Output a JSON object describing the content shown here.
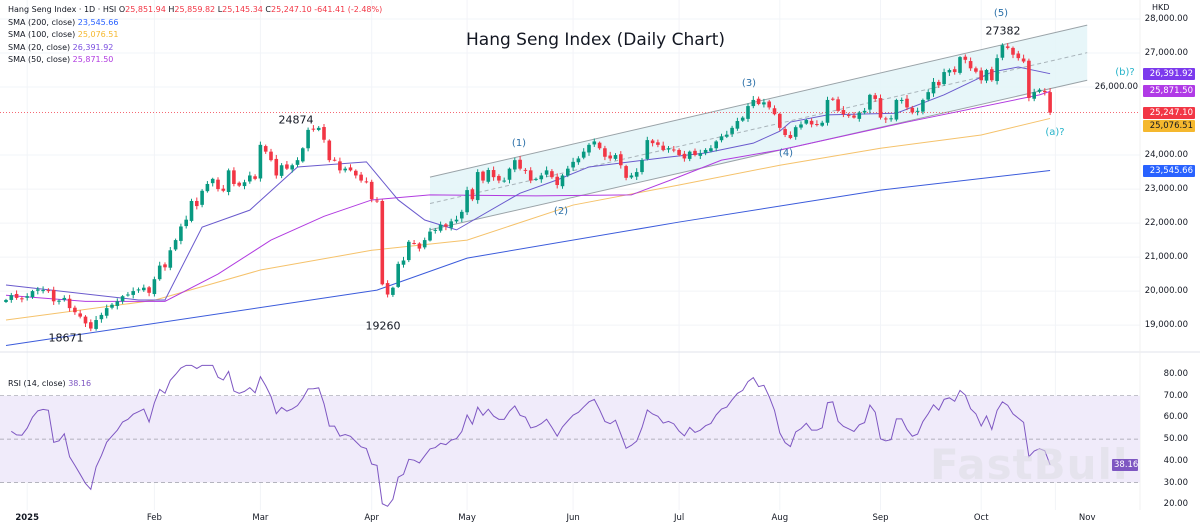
{
  "header": {
    "symbol": "Hang Seng Index · 1D · HSI",
    "o_label": "O",
    "o": "25,851.94",
    "h_label": "H",
    "h": "25,859.82",
    "l_label": "L",
    "l": "25,145.34",
    "c_label": "C",
    "c": "25,247.10",
    "change": "-641.41 (-2.48%)"
  },
  "indicators": [
    {
      "label": "SMA (200, close)",
      "value": "23,545.66",
      "color": "#2962ff"
    },
    {
      "label": "SMA (100, close)",
      "value": "25,076.51",
      "color": "#f5b82e"
    },
    {
      "label": "SMA (20, close)",
      "value": "26,391.92",
      "color": "#7b4fe0"
    },
    {
      "label": "SMA (50, close)",
      "value": "25,871.50",
      "color": "#b13be0"
    }
  ],
  "title": "Hang Seng Index (Daily Chart)",
  "currency": "HKD",
  "rsi_legend": {
    "label": "RSI (14, close)",
    "value": "38.16"
  },
  "annotations": {
    "high_mar": "24874",
    "low_jan": "18671",
    "low_apr": "19260",
    "high_oct": "27382",
    "w1": "(1)",
    "w2": "(2)",
    "w3": "(3)",
    "w4": "(4)",
    "w5": "(5)",
    "wb": "(b)?",
    "wa": "(a)?"
  },
  "price_axis": {
    "ticks": [
      {
        "v": 28000,
        "t": "28,000.00"
      },
      {
        "v": 27000,
        "t": "27,000.00"
      },
      {
        "v": 26000,
        "t": "26,000.00"
      },
      {
        "v": 24000,
        "t": "24,000.00"
      },
      {
        "v": 23000,
        "t": "23,000.00"
      },
      {
        "v": 22000,
        "t": "22,000.00"
      },
      {
        "v": 21000,
        "t": "21,000.00"
      },
      {
        "v": 20000,
        "t": "20,000.00"
      },
      {
        "v": 19000,
        "t": "19,000.00"
      }
    ],
    "badges": [
      {
        "v": 26391.92,
        "t": "26,391.92",
        "color": "#7c3aed"
      },
      {
        "v": 25871.5,
        "t": "25,871.50",
        "color": "#b03ae6"
      },
      {
        "v": 25247.1,
        "t": "25,247.10",
        "color": "#f23645"
      },
      {
        "v": 25076.51,
        "t": "25,076.51",
        "color": "#f5b82e"
      },
      {
        "v": 23545.66,
        "t": "23,545.66",
        "color": "#2962ff"
      }
    ]
  },
  "rsi_axis": {
    "ticks": [
      {
        "v": 80,
        "t": "80.00"
      },
      {
        "v": 70,
        "t": "70.00"
      },
      {
        "v": 60,
        "t": "60.00"
      },
      {
        "v": 50,
        "t": "50.00"
      },
      {
        "v": 40,
        "t": "40.00"
      },
      {
        "v": 30,
        "t": "30.00"
      },
      {
        "v": 20,
        "t": "20.00"
      }
    ],
    "badge": {
      "v": 38.16,
      "t": "38.16",
      "color": "#7e57c2"
    }
  },
  "watermark": "FastBull",
  "colors": {
    "up": "#089981",
    "down": "#f23645",
    "channel_fill": "#e3f4f8",
    "channel_line": "#9aa3a8",
    "rsi": "#7e57c2",
    "rsi_band": "#f0ebfa"
  },
  "chart_data": {
    "type": "candlestick",
    "title": "Hang Seng Index (Daily Chart)",
    "ylim": [
      18400,
      28300
    ],
    "current_price": 25247.1,
    "groups": [
      {
        "label": "",
        "closes": [
          19740,
          19880,
          19800,
          19780
        ]
      },
      {
        "label": "2025",
        "closes": [
          19850,
          20000,
          20050,
          20030,
          20000,
          19700,
          19720,
          19800,
          19500,
          19380,
          19250,
          19050,
          18900,
          19150,
          19300,
          19500,
          19600,
          19700,
          19850,
          19900,
          20000,
          20050,
          20100,
          19950
        ]
      },
      {
        "label": "Feb",
        "closes": [
          20350,
          20750,
          20700,
          21200,
          21500,
          21900,
          22100,
          22650,
          22500,
          22950,
          23150,
          23300,
          23000,
          22950,
          23550,
          23150,
          23100,
          23200,
          23400,
          23300
        ]
      },
      {
        "label": "Mar",
        "closes": [
          24300,
          24100,
          23850,
          23400,
          23700,
          23600,
          23700,
          23850,
          24200,
          24740,
          24750,
          24800,
          24450,
          23850,
          23850,
          23550,
          23600,
          23550,
          23400,
          23250,
          23200
        ]
      },
      {
        "label": "Apr",
        "closes": [
          22700,
          22650,
          20200,
          19900,
          20100,
          20800,
          20900,
          21450,
          21400,
          21250,
          21500,
          21750,
          21800,
          21950,
          21900,
          22050,
          22100,
          22330
        ]
      },
      {
        "label": "May",
        "closes": [
          22970,
          22700,
          23500,
          23250,
          23560,
          23350,
          23250,
          23250,
          23600,
          23850,
          23600,
          23550,
          23250,
          23300,
          23400,
          23550,
          23350,
          23120,
          23400,
          23600
        ]
      },
      {
        "label": "Jun",
        "closes": [
          23800,
          23900,
          24100,
          24300,
          24400,
          24200,
          23950,
          23900,
          24000,
          23700,
          23330,
          23400,
          23500,
          23850,
          24440,
          24350,
          24300,
          24150,
          24200,
          24150
        ]
      },
      {
        "label": "Jul",
        "closes": [
          24000,
          23900,
          24100,
          24000,
          24050,
          24150,
          24200,
          24400,
          24550,
          24600,
          24800,
          25000,
          25100,
          25440,
          25620,
          25500,
          25550,
          25400,
          25200
        ]
      },
      {
        "label": "Aug",
        "closes": [
          24800,
          24590,
          24500,
          24820,
          24900,
          25030,
          24900,
          24900,
          24950,
          25620,
          25650,
          25300,
          25200,
          25150,
          25100,
          25250,
          25300,
          25770,
          25650
        ]
      },
      {
        "label": "Sep",
        "closes": [
          25100,
          25050,
          25080,
          25620,
          25620,
          25400,
          25250,
          25300,
          25620,
          25850,
          26150,
          26050,
          26440,
          26500,
          26440,
          26880,
          26800,
          26550,
          26450
        ]
      },
      {
        "label": "Oct",
        "closes": [
          26200,
          26500,
          26200,
          26850,
          27230,
          27150,
          26950,
          26850,
          26750,
          25680,
          25850,
          25920,
          25850,
          25247.1
        ]
      },
      {
        "label": "Nov",
        "closes": []
      }
    ],
    "sma": [
      {
        "name": "SMA (200, close)",
        "color": "#3b5bdb",
        "points": [
          [
            0,
            18400
          ],
          [
            70,
            20030
          ],
          [
            87,
            20970
          ],
          [
            127,
            22030
          ],
          [
            165,
            22970
          ],
          [
            197,
            23545.66
          ]
        ]
      },
      {
        "name": "SMA (100, close)",
        "color": "#f5c26b",
        "points": [
          [
            0,
            19150
          ],
          [
            28,
            19730
          ],
          [
            48,
            20620
          ],
          [
            69,
            21200
          ],
          [
            87,
            21500
          ],
          [
            107,
            22530
          ],
          [
            127,
            23120
          ],
          [
            146,
            23700
          ],
          [
            165,
            24200
          ],
          [
            184,
            24590
          ],
          [
            197,
            25076.51
          ]
        ]
      },
      {
        "name": "SMA (50, close)",
        "color": "#b13be0",
        "points": [
          [
            0,
            19880
          ],
          [
            15,
            19700
          ],
          [
            30,
            19700
          ],
          [
            40,
            20500
          ],
          [
            50,
            21500
          ],
          [
            60,
            22200
          ],
          [
            69,
            22680
          ],
          [
            80,
            22830
          ],
          [
            100,
            22800
          ],
          [
            118,
            22830
          ],
          [
            126,
            23300
          ],
          [
            135,
            23850
          ],
          [
            146,
            24150
          ],
          [
            170,
            24970
          ],
          [
            195,
            25770
          ],
          [
            197,
            25871.5
          ]
        ]
      },
      {
        "name": "SMA (20, close)",
        "color": "#6a5acd",
        "points": [
          [
            0,
            20180
          ],
          [
            25,
            19740
          ],
          [
            30,
            19740
          ],
          [
            37,
            21880
          ],
          [
            46,
            22380
          ],
          [
            55,
            23650
          ],
          [
            68,
            23800
          ],
          [
            74,
            22680
          ],
          [
            79,
            22090
          ],
          [
            85,
            21800
          ],
          [
            97,
            22880
          ],
          [
            104,
            23270
          ],
          [
            110,
            23650
          ],
          [
            125,
            23940
          ],
          [
            132,
            24060
          ],
          [
            141,
            24350
          ],
          [
            146,
            24700
          ],
          [
            148,
            24970
          ],
          [
            155,
            25180
          ],
          [
            168,
            25230
          ],
          [
            177,
            25770
          ],
          [
            186,
            26440
          ],
          [
            191,
            26590
          ],
          [
            197,
            26391.92
          ]
        ]
      }
    ],
    "channel": {
      "start_bar": 80,
      "end_bar": 204,
      "upper": [
        23350,
        27820
      ],
      "lower": [
        21800,
        26200
      ]
    },
    "rsi": {
      "period": 14,
      "last": 38.16,
      "ylim": [
        18,
        84
      ],
      "levels": [
        70,
        50,
        30
      ]
    }
  }
}
